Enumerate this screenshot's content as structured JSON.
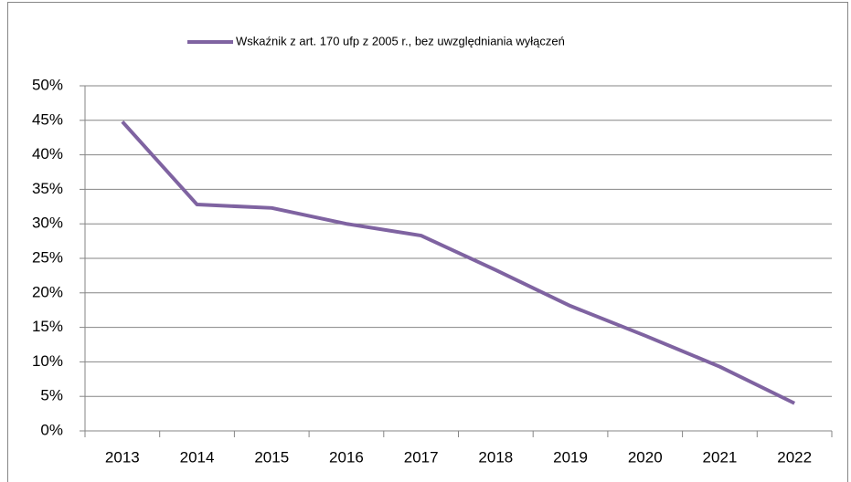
{
  "chart_data": {
    "type": "line",
    "categories": [
      "2013",
      "2014",
      "2015",
      "2016",
      "2017",
      "2018",
      "2019",
      "2020",
      "2021",
      "2022"
    ],
    "series": [
      {
        "name": "Wskaźnik z art. 170 ufp z 2005 r., bez uwzględniania wyłączeń",
        "color": "#7f63a1",
        "values": [
          44.8,
          32.8,
          32.3,
          30.0,
          28.3,
          23.3,
          18.1,
          13.8,
          9.3,
          4.0
        ]
      }
    ],
    "ylim": [
      0,
      50
    ],
    "yticks": [
      {
        "value": 0,
        "label": "0%"
      },
      {
        "value": 5,
        "label": "5%"
      },
      {
        "value": 10,
        "label": "10%"
      },
      {
        "value": 15,
        "label": "15%"
      },
      {
        "value": 20,
        "label": "20%"
      },
      {
        "value": 25,
        "label": "25%"
      },
      {
        "value": 30,
        "label": "30%"
      },
      {
        "value": 35,
        "label": "35%"
      },
      {
        "value": 40,
        "label": "40%"
      },
      {
        "value": 45,
        "label": "45%"
      },
      {
        "value": 50,
        "label": "50%"
      }
    ],
    "grid": true,
    "legend": "top"
  }
}
